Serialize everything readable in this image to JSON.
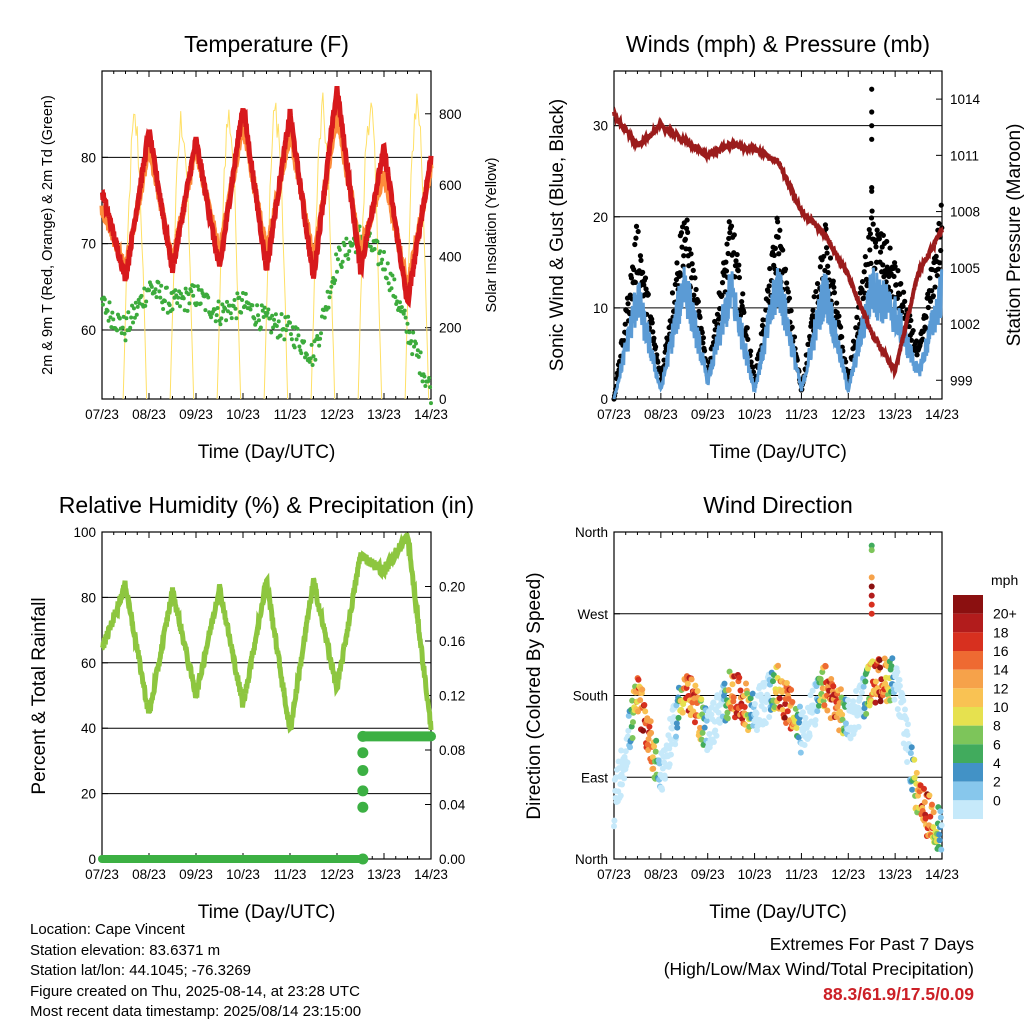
{
  "days": [
    "07/23",
    "08/23",
    "09/23",
    "10/23",
    "11/23",
    "12/23",
    "13/23",
    "14/23"
  ],
  "xlabel": "Time (Day/UTC)",
  "panels": {
    "temperature": {
      "title": "Temperature (F)",
      "ylabel_left": "2m & 9m T (Red, Orange) & 2m Td (Green)",
      "ylabel_right": "Solar Insolation (Yellow)",
      "left_ticks": [
        "60",
        "70",
        "80"
      ],
      "right_ticks": [
        "0",
        "200",
        "400",
        "600",
        "800"
      ]
    },
    "winds": {
      "title": "Winds (mph) & Pressure (mb)",
      "ylabel_left": "Sonic Wind & Gust (Blue, Black)",
      "ylabel_right": "Station Pressure (Maroon)",
      "left_ticks": [
        "0",
        "10",
        "20",
        "30"
      ],
      "right_ticks": [
        "999",
        "1002",
        "1005",
        "1008",
        "1011",
        "1014"
      ]
    },
    "humidity": {
      "title": "Relative Humidity (%) & Precipitation (in)",
      "ylabel_left": "Percent & Total Rainfall",
      "left_ticks": [
        "0",
        "20",
        "40",
        "60",
        "80",
        "100"
      ],
      "right_ticks": [
        "0.00",
        "0.04",
        "0.08",
        "0.12",
        "0.16",
        "0.20"
      ]
    },
    "direction": {
      "title": "Wind Direction",
      "ylabel_left": "Direction (Colored By Speed)",
      "left_ticks": [
        "North",
        "East",
        "South",
        "West",
        "North"
      ],
      "colorbar_title": "mph",
      "colorbar_labels": [
        "0",
        "2",
        "4",
        "6",
        "8",
        "10",
        "12",
        "14",
        "16",
        "18",
        "20+"
      ],
      "colorbar_colors": [
        "#c6e9fa",
        "#87c7ec",
        "#4292c6",
        "#41ab5d",
        "#7dc55a",
        "#e6e14f",
        "#f9c253",
        "#f6a24a",
        "#ee6a32",
        "#d7301f",
        "#b21c1c",
        "#8b1010"
      ]
    }
  },
  "chart_data": [
    {
      "type": "line",
      "title": "Temperature (F)",
      "xlabel": "Time (Day/UTC)",
      "ylabel": "2m & 9m T (Red, Orange) & 2m Td (Green)",
      "y2label": "Solar Insolation (Yellow)",
      "x_days": [
        0,
        0.5,
        1,
        1.5,
        2,
        2.5,
        3,
        3.5,
        4,
        4.5,
        5,
        5.5,
        6,
        6.5,
        7
      ],
      "ylim": [
        52,
        90
      ],
      "y2lim": [
        0,
        920
      ],
      "series": [
        {
          "name": "2m T",
          "color": "#d7191c",
          "values": [
            76,
            66,
            83,
            67,
            82,
            67,
            86,
            67,
            85,
            66,
            88,
            67,
            81,
            63,
            80
          ]
        },
        {
          "name": "9m T",
          "color": "#fd8d3c",
          "values": [
            74,
            67,
            81,
            68,
            81,
            69,
            84,
            69,
            83,
            68,
            85,
            69,
            78,
            65,
            79
          ]
        },
        {
          "name": "2m Td",
          "color": "#3cab3c",
          "values": [
            63,
            60,
            65,
            63,
            64,
            62,
            63,
            61,
            60,
            57,
            68,
            71,
            68,
            60,
            53
          ]
        },
        {
          "name": "Solar",
          "color": "#ffe066",
          "peaks": [
            830,
            840,
            850,
            870,
            860,
            880,
            900
          ]
        }
      ]
    },
    {
      "type": "line",
      "title": "Winds (mph) & Pressure (mb)",
      "xlabel": "Time (Day/UTC)",
      "ylabel": "Sonic Wind & Gust (Blue, Black)",
      "y2label": "Station Pressure (Maroon)",
      "ylim": [
        0,
        36
      ],
      "y2lim": [
        998,
        1015.5
      ],
      "x_days": [
        0,
        0.5,
        1,
        1.5,
        2,
        2.5,
        3,
        3.5,
        4,
        4.5,
        5,
        5.5,
        6,
        6.5,
        7
      ],
      "series": [
        {
          "name": "Gust",
          "color": "#000000",
          "values": [
            0,
            18,
            2,
            20,
            3,
            19,
            2,
            19,
            1,
            18,
            2,
            19,
            14,
            5,
            20
          ]
        },
        {
          "name": "Wind",
          "color": "#5b9bd5",
          "values": [
            0,
            12,
            1,
            14,
            2,
            13,
            1,
            14,
            1,
            13,
            1,
            13,
            10,
            3,
            13
          ]
        },
        {
          "name": "Pressure",
          "color": "#9b1c1c",
          "values": [
            1013.2,
            1011.5,
            1012.6,
            1011.8,
            1011.0,
            1011.6,
            1011.3,
            1010.7,
            1008.0,
            1006.8,
            1004.6,
            1001.5,
            999.5,
            1004.8,
            1007.0
          ]
        }
      ]
    },
    {
      "type": "line",
      "title": "Relative Humidity (%) & Precipitation (in)",
      "xlabel": "Time (Day/UTC)",
      "ylabel": "Percent & Total Rainfall",
      "ylim": [
        0,
        100
      ],
      "y2lim": [
        0,
        0.24
      ],
      "x_days": [
        0,
        0.5,
        1,
        1.5,
        2,
        2.5,
        3,
        3.5,
        4,
        4.5,
        5,
        5.5,
        6,
        6.5,
        7
      ],
      "series": [
        {
          "name": "RH",
          "color": "#8dc63f",
          "values": [
            64,
            84,
            44,
            82,
            50,
            83,
            47,
            85,
            39,
            85,
            52,
            93,
            88,
            99,
            40
          ]
        },
        {
          "name": "Precip",
          "color": "#3cb043",
          "values": [
            0,
            0,
            0,
            0,
            0,
            0,
            0,
            0,
            0,
            0,
            0,
            0,
            0.09,
            0.09,
            0.09
          ]
        }
      ]
    },
    {
      "type": "scatter",
      "title": "Wind Direction",
      "xlabel": "Time (Day/UTC)",
      "ylabel": "Direction (Colored By Speed)",
      "ylim": [
        0,
        360
      ],
      "x_days": [
        0,
        0.5,
        1,
        1.5,
        2,
        2.5,
        3,
        3.5,
        4,
        4.5,
        5,
        5.5,
        6,
        6.5,
        7
      ],
      "values": [
        60,
        180,
        90,
        190,
        140,
        185,
        160,
        190,
        140,
        190,
        150,
        195,
        200,
        60,
        30
      ]
    }
  ],
  "info": {
    "location": "Location: Cape Vincent",
    "elevation": "Station elevation: 83.6371 m",
    "latlon": "Station lat/lon: 44.1045; -76.3269",
    "created": "Figure created on Thu, 2025-08-14, at 23:28 UTC",
    "recent": "Most recent data timestamp: 2025/08/14 23:15:00"
  },
  "extremes": {
    "title": "Extremes For Past 7 Days",
    "subtitle": "(High/Low/Max Wind/Total Precipitation)",
    "values": "88.3/61.9/17.5/0.09"
  }
}
